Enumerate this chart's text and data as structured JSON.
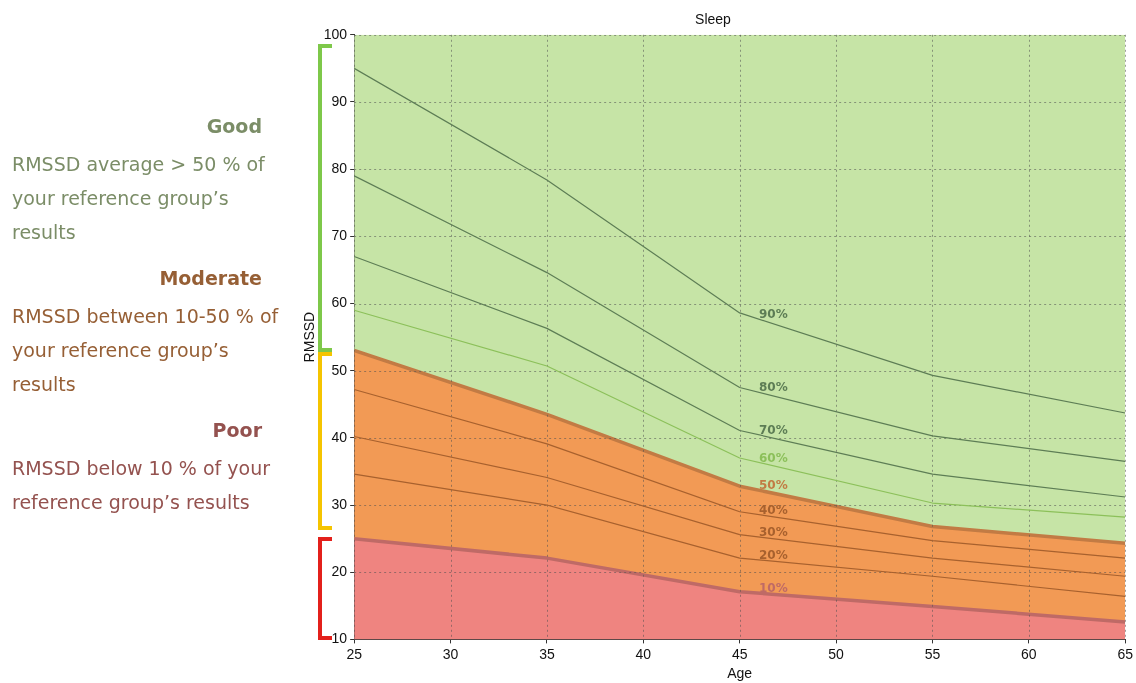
{
  "chart_data": {
    "type": "line",
    "title": "Sleep",
    "xlabel": "Age",
    "ylabel": "RMSSD",
    "x": [
      25,
      35,
      45,
      55,
      65
    ],
    "xlim": [
      25,
      65
    ],
    "xticks": [
      25,
      30,
      35,
      40,
      45,
      50,
      55,
      60,
      65
    ],
    "ylim": [
      10,
      100
    ],
    "yticks": [
      10,
      20,
      30,
      40,
      50,
      60,
      70,
      80,
      90,
      100
    ],
    "grid": true,
    "marker": "none",
    "legend": "left",
    "annotations": [
      "Good",
      "RMSSD average > 50 % of your reference group’s results",
      "Moderate",
      "RMSSD between 10-50 % of your reference group’s results",
      "Poor",
      "RMSSD below 10 % of your reference group’s results"
    ],
    "series": [
      {
        "name": "10%",
        "type": "area",
        "color": "#ef8480",
        "values": [
          25,
          22.1,
          17.1,
          14.9,
          12.6
        ]
      },
      {
        "name": "50%",
        "type": "area",
        "color": "#f29a55",
        "values": [
          53,
          43.5,
          32.8,
          26.8,
          24.3
        ]
      },
      {
        "type": "area",
        "color": "#c6e4a6",
        "values": [
          100,
          100,
          100,
          100,
          100
        ]
      },
      {
        "name": "90%",
        "color": "#5d7d55",
        "values": [
          95,
          78.4,
          58.6,
          49.3,
          43.7
        ]
      },
      {
        "name": "80%",
        "color": "#5d7d55",
        "values": [
          79,
          64.6,
          47.5,
          40.3,
          36.5
        ]
      },
      {
        "name": "70%",
        "color": "#5d7d55",
        "values": [
          67,
          56.3,
          41.1,
          34.6,
          31.2
        ]
      },
      {
        "name": "60%",
        "color": "#8cc05a",
        "values": [
          59,
          50.7,
          37,
          30.3,
          28.2
        ]
      },
      {
        "name": "40%",
        "color": "#a8612e",
        "values": [
          47.2,
          39.1,
          29,
          24.7,
          22.1
        ]
      },
      {
        "name": "30%",
        "color": "#a8612e",
        "values": [
          40.2,
          34.1,
          25.6,
          22.1,
          19.4
        ]
      },
      {
        "name": "20%",
        "color": "#a8612e",
        "values": [
          34.6,
          30,
          22.1,
          19.4,
          16.4
        ]
      }
    ]
  }
}
